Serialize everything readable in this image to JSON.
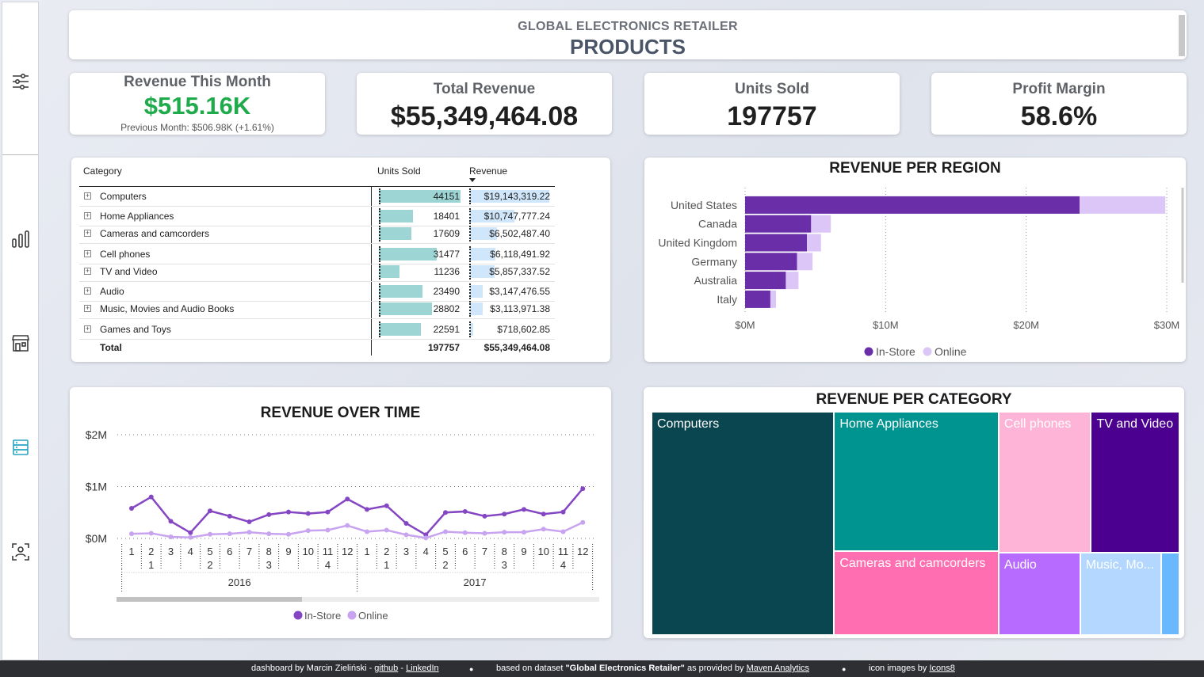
{
  "header": {
    "subtitle": "GLOBAL ELECTRONICS RETAILER",
    "title": "PRODUCTS"
  },
  "sidebar": {
    "items": [
      "filters-icon",
      "chart-icon",
      "store-icon",
      "data-icon",
      "person-scan-icon"
    ]
  },
  "kpis": {
    "month": {
      "title": "Revenue This Month",
      "value": "$515.16K",
      "note": "Previous Month: $506.98K (+1.61%)",
      "value_color": "#1faa4c"
    },
    "total": {
      "title": "Total Revenue",
      "value": "$55,349,464.08"
    },
    "units": {
      "title": "Units Sold",
      "value": "197757"
    },
    "margin": {
      "title": "Profit Margin",
      "value": "58.6%"
    }
  },
  "table": {
    "headers": {
      "category": "Category",
      "units": "Units Sold",
      "revenue": "Revenue"
    },
    "rows": [
      {
        "category": "Computers",
        "units": "44151",
        "revenue": "$19,143,319.22",
        "u": 44151,
        "r": 19143319.22
      },
      {
        "category": "Home Appliances",
        "units": "18401",
        "revenue": "$10,747,777.24",
        "u": 18401,
        "r": 10747777.24
      },
      {
        "category": "Cameras and camcorders",
        "units": "17609",
        "revenue": "$6,502,487.40",
        "u": 17609,
        "r": 6502487.4
      },
      {
        "category": "Cell phones",
        "units": "31477",
        "revenue": "$6,118,491.92",
        "u": 31477,
        "r": 6118491.92
      },
      {
        "category": "TV and Video",
        "units": "11236",
        "revenue": "$5,857,337.52",
        "u": 11236,
        "r": 5857337.52
      },
      {
        "category": "Audio",
        "units": "23490",
        "revenue": "$3,147,476.55",
        "u": 23490,
        "r": 3147476.55
      },
      {
        "category": "Music, Movies and Audio Books",
        "units": "28802",
        "revenue": "$3,113,971.38",
        "u": 28802,
        "r": 3113971.38
      },
      {
        "category": "Games and Toys",
        "units": "22591",
        "revenue": "$718,602.85",
        "u": 22591,
        "r": 718602.85
      }
    ],
    "total": {
      "label": "Total",
      "units": "197757",
      "revenue": "$55,349,464.08"
    }
  },
  "chart_data": [
    {
      "type": "bar",
      "title": "REVENUE PER REGION",
      "orientation": "horizontal",
      "stacked": true,
      "categories": [
        "United States",
        "Canada",
        "United Kingdom",
        "Germany",
        "Australia",
        "Italy"
      ],
      "series": [
        {
          "name": "In-Store",
          "color": "#6a2fa8",
          "values": [
            23.8,
            4.7,
            4.4,
            3.7,
            2.9,
            1.8
          ]
        },
        {
          "name": "Online",
          "color": "#dcc6f7",
          "values": [
            6.1,
            1.4,
            1.0,
            1.1,
            0.9,
            0.4
          ]
        }
      ],
      "xlim": [
        0,
        30
      ],
      "x_ticks": [
        "$0M",
        "$10M",
        "$20M",
        "$30M"
      ],
      "grid": true,
      "legend": "bottom"
    },
    {
      "type": "line",
      "title": "REVENUE OVER TIME",
      "x_month_labels": [
        "1",
        "2",
        "3",
        "4",
        "5",
        "6",
        "7",
        "8",
        "9",
        "10",
        "11",
        "12",
        "1",
        "2",
        "3",
        "4",
        "5",
        "6",
        "7",
        "8",
        "9",
        "10",
        "11",
        "12"
      ],
      "x_quarter_labels": [
        "1",
        "2",
        "3",
        "4",
        "1",
        "2",
        "3",
        "4"
      ],
      "x_year_labels": [
        "2016",
        "2017"
      ],
      "y_ticks": [
        "$2M",
        "$1M",
        "$0M"
      ],
      "ylim": [
        0,
        2
      ],
      "series": [
        {
          "name": "In-Store",
          "color": "#8446c2",
          "values": [
            0.58,
            0.8,
            0.33,
            0.11,
            0.53,
            0.43,
            0.32,
            0.46,
            0.51,
            0.48,
            0.51,
            0.76,
            0.56,
            0.63,
            0.29,
            0.07,
            0.5,
            0.52,
            0.43,
            0.47,
            0.56,
            0.47,
            0.51,
            0.96
          ]
        },
        {
          "name": "Online",
          "color": "#c8a4f0",
          "values": [
            0.09,
            0.1,
            0.03,
            0.02,
            0.08,
            0.09,
            0.12,
            0.09,
            0.08,
            0.15,
            0.16,
            0.25,
            0.13,
            0.16,
            0.07,
            0.01,
            0.13,
            0.11,
            0.1,
            0.12,
            0.12,
            0.18,
            0.13,
            0.31
          ]
        }
      ],
      "grid": true,
      "legend": "bottom"
    },
    {
      "type": "treemap",
      "title": "REVENUE PER CATEGORY",
      "tiles": [
        {
          "label": "Computers",
          "value": 19143319.22,
          "color": "#0a4650"
        },
        {
          "label": "Home Appliances",
          "value": 10747777.24,
          "color": "#009490"
        },
        {
          "label": "Cameras and camcorders",
          "value": 6502487.4,
          "color": "#ff6eb0"
        },
        {
          "label": "Cell phones",
          "value": 6118491.92,
          "color": "#fdb4d7"
        },
        {
          "label": "TV and Video",
          "value": 5857337.52,
          "color": "#4c0090"
        },
        {
          "label": "Audio",
          "value": 3147476.55,
          "color": "#b86bff"
        },
        {
          "label": "Music, Mo...",
          "value": 3113971.38,
          "color": "#b3d7ff"
        },
        {
          "label": "",
          "value": 718602.85,
          "color": "#6ab8ff"
        }
      ]
    }
  ],
  "footer": {
    "credit_prefix": "dashboard by Marcin Zieliński - ",
    "github": "github",
    "sep": " - ",
    "linkedin": "LinkedIn",
    "dataset_prefix": "based on dataset ",
    "dataset_name": "\"Global Electronics Retailer\"",
    "dataset_mid": " as provided by ",
    "maven": "Maven Analytics",
    "icons_prefix": "icon images by ",
    "icons8": "Icons8",
    "bullet": "●"
  }
}
